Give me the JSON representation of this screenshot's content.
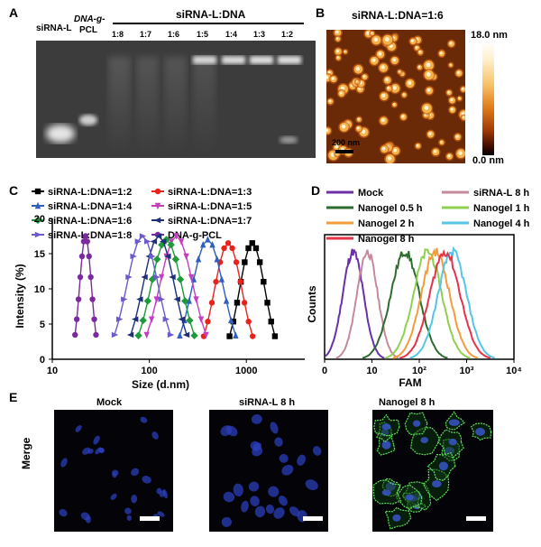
{
  "panelA": {
    "letter": "A",
    "lane_siRNA": "siRNA-L",
    "lane_dna_line1": "DNA-g-",
    "lane_dna_line2": "PCL",
    "group_title": "siRNA-L:DNA",
    "ratios": [
      "1:8",
      "1:7",
      "1:6",
      "1:5",
      "1:4",
      "1:3",
      "1:2"
    ]
  },
  "panelB": {
    "letter": "B",
    "title": "siRNA-L:DNA=1:6",
    "scale_max": "18.0 nm",
    "scale_min": "0.0 nm",
    "scalebar": "200 nm"
  },
  "panelC": {
    "letter": "C",
    "legend": [
      "siRNA-L:DNA=1:2",
      "siRNA-L:DNA=1:3",
      "siRNA-L:DNA=1:4",
      "siRNA-L:DNA=1:5",
      "siRNA-L:DNA=1:6",
      "siRNA-L:DNA=1:7",
      "siRNA-L:DNA=1:8",
      "DNA-g-PCL"
    ],
    "ylabel": "Intensity (%)",
    "xlabel": "Size (d.nm)",
    "yticks": [
      "0",
      "5",
      "10",
      "15",
      "20"
    ],
    "xticks": [
      "10",
      "100",
      "1000"
    ]
  },
  "panelD": {
    "letter": "D",
    "legend": [
      "Mock",
      "siRNA-L 8 h",
      "Nanogel 0.5 h",
      "Nanogel 1 h",
      "Nanogel 2 h",
      "Nanogel 4 h",
      "Nanogel 8 h"
    ],
    "ylabel": "Counts",
    "xlabel": "FAM",
    "xticks": [
      "0",
      "10",
      "10²",
      "10³",
      "10⁴"
    ]
  },
  "panelE": {
    "letter": "E",
    "row_label": "Merge",
    "titles": [
      "Mock",
      "siRNA-L 8 h",
      "Nanogel 8 h"
    ]
  },
  "chart_data": [
    {
      "type": "line",
      "xlabel": "Size (d.nm)",
      "ylabel": "Intensity (%)",
      "xscale": "log",
      "xlim": [
        10,
        4000
      ],
      "ylim": [
        0,
        20
      ],
      "series": [
        {
          "name": "siRNA-L:DNA=1:2",
          "color": "#000000",
          "marker": "square",
          "peak_x": 1150,
          "peak_y": 16.5,
          "sigma_log": 0.13
        },
        {
          "name": "siRNA-L:DNA=1:3",
          "color": "#e8231c",
          "marker": "circle",
          "peak_x": 650,
          "peak_y": 16.5,
          "sigma_log": 0.14
        },
        {
          "name": "siRNA-L:DNA=1:4",
          "color": "#2f5fbf",
          "marker": "triangle-up",
          "peak_x": 400,
          "peak_y": 17.0,
          "sigma_log": 0.16
        },
        {
          "name": "siRNA-L:DNA=1:5",
          "color": "#c23fc0",
          "marker": "triangle-down",
          "peak_x": 190,
          "peak_y": 17.5,
          "sigma_log": 0.17
        },
        {
          "name": "siRNA-L:DNA=1:6",
          "color": "#1f9a3a",
          "marker": "diamond",
          "peak_x": 150,
          "peak_y": 17.0,
          "sigma_log": 0.16
        },
        {
          "name": "siRNA-L:DNA=1:7",
          "color": "#1e2f7a",
          "marker": "triangle-left",
          "peak_x": 125,
          "peak_y": 17.5,
          "sigma_log": 0.16
        },
        {
          "name": "siRNA-L:DNA=1:8",
          "color": "#6a5acd",
          "marker": "triangle-right",
          "peak_x": 85,
          "peak_y": 17.5,
          "sigma_log": 0.16
        },
        {
          "name": "DNA-g-PCL",
          "color": "#7b2a9e",
          "marker": "hexagon",
          "peak_x": 22,
          "peak_y": 17.5,
          "sigma_log": 0.06
        }
      ]
    },
    {
      "type": "line",
      "xlabel": "FAM",
      "ylabel": "Counts",
      "xscale": "log",
      "xlim": [
        0,
        10000
      ],
      "series": [
        {
          "name": "Mock",
          "color": "#6b2fa8",
          "peak_x": 4,
          "sigma_log": 0.22
        },
        {
          "name": "siRNA-L 8 h",
          "color": "#c48a9a",
          "peak_x": 8,
          "sigma_log": 0.22
        },
        {
          "name": "Nanogel 0.5 h",
          "color": "#2e6b2e",
          "peak_x": 50,
          "sigma_log": 0.3
        },
        {
          "name": "Nanogel 1 h",
          "color": "#8fd14f",
          "peak_x": 150,
          "sigma_log": 0.3
        },
        {
          "name": "Nanogel 2 h",
          "color": "#f39c3c",
          "peak_x": 220,
          "sigma_log": 0.3
        },
        {
          "name": "Nanogel 4 h",
          "color": "#56c5e8",
          "peak_x": 500,
          "sigma_log": 0.3
        },
        {
          "name": "Nanogel 8 h",
          "color": "#e8324a",
          "peak_x": 350,
          "sigma_log": 0.32
        }
      ]
    }
  ]
}
